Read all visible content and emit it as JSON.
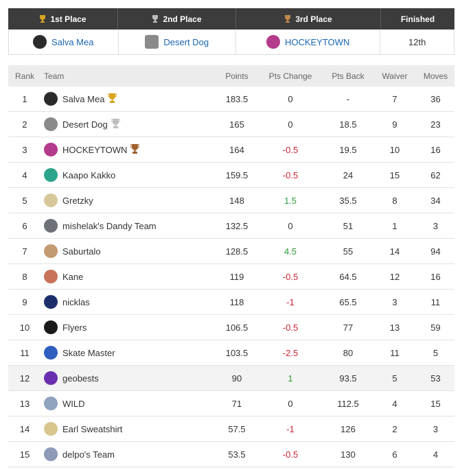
{
  "podium": {
    "headers": [
      "1st Place",
      "2nd Place",
      "3rd Place",
      "Finished"
    ],
    "first": "Salva Mea",
    "second": "Desert Dog",
    "third": "HOCKEYTOWN",
    "finished": "12th",
    "colors": {
      "gold": "#d9a520",
      "silver": "#bdbdbd",
      "bronze": "#a0622d"
    }
  },
  "columns": {
    "rank": "Rank",
    "team": "Team",
    "points": "Points",
    "change": "Pts Change",
    "back": "Pts Back",
    "waiver": "Waiver",
    "moves": "Moves"
  },
  "rows": [
    {
      "rank": "1",
      "team": "Salva Mea",
      "points": "183.5",
      "change": "0",
      "back": "-",
      "waiver": "7",
      "moves": "36",
      "avatar": "#2b2b2b",
      "trophy": "gold"
    },
    {
      "rank": "2",
      "team": "Desert Dog",
      "points": "165",
      "change": "0",
      "back": "18.5",
      "waiver": "9",
      "moves": "23",
      "avatar": "#8a8a8a",
      "trophy": "silver"
    },
    {
      "rank": "3",
      "team": "HOCKEYTOWN",
      "points": "164",
      "change": "-0.5",
      "back": "19.5",
      "waiver": "10",
      "moves": "16",
      "avatar": "#b43a8c",
      "trophy": "bronze"
    },
    {
      "rank": "4",
      "team": "Kaapo Kakko",
      "points": "159.5",
      "change": "-0.5",
      "back": "24",
      "waiver": "15",
      "moves": "62",
      "avatar": "#2aa58c",
      "trophy": ""
    },
    {
      "rank": "5",
      "team": "Gretzky",
      "points": "148",
      "change": "1.5",
      "back": "35.5",
      "waiver": "8",
      "moves": "34",
      "avatar": "#d6c79a",
      "trophy": ""
    },
    {
      "rank": "6",
      "team": "mishelak's Dandy Team",
      "points": "132.5",
      "change": "0",
      "back": "51",
      "waiver": "1",
      "moves": "3",
      "avatar": "#6e7278",
      "trophy": ""
    },
    {
      "rank": "7",
      "team": "Saburtalo",
      "points": "128.5",
      "change": "4.5",
      "back": "55",
      "waiver": "14",
      "moves": "94",
      "avatar": "#c49a72",
      "trophy": ""
    },
    {
      "rank": "8",
      "team": "Kane",
      "points": "119",
      "change": "-0.5",
      "back": "64.5",
      "waiver": "12",
      "moves": "16",
      "avatar": "#c8735a",
      "trophy": ""
    },
    {
      "rank": "9",
      "team": "nicklas",
      "points": "118",
      "change": "-1",
      "back": "65.5",
      "waiver": "3",
      "moves": "11",
      "avatar": "#1d2f6b",
      "trophy": ""
    },
    {
      "rank": "10",
      "team": "Flyers",
      "points": "106.5",
      "change": "-0.5",
      "back": "77",
      "waiver": "13",
      "moves": "59",
      "avatar": "#1a1a1a",
      "trophy": ""
    },
    {
      "rank": "11",
      "team": "Skate Master",
      "points": "103.5",
      "change": "-2.5",
      "back": "80",
      "waiver": "11",
      "moves": "5",
      "avatar": "#2f5fc0",
      "trophy": ""
    },
    {
      "rank": "12",
      "team": "geobests",
      "points": "90",
      "change": "1",
      "back": "93.5",
      "waiver": "5",
      "moves": "53",
      "avatar": "#6a2fb0",
      "trophy": "",
      "highlight": true
    },
    {
      "rank": "13",
      "team": "WILD",
      "points": "71",
      "change": "0",
      "back": "112.5",
      "waiver": "4",
      "moves": "15",
      "avatar": "#8fa3bf",
      "trophy": ""
    },
    {
      "rank": "14",
      "team": "Earl Sweatshirt",
      "points": "57.5",
      "change": "-1",
      "back": "126",
      "waiver": "2",
      "moves": "3",
      "avatar": "#d8c68e",
      "trophy": ""
    },
    {
      "rank": "15",
      "team": "delpo's Team",
      "points": "53.5",
      "change": "-0.5",
      "back": "130",
      "waiver": "6",
      "moves": "4",
      "avatar": "#8d9ab8",
      "trophy": ""
    }
  ]
}
